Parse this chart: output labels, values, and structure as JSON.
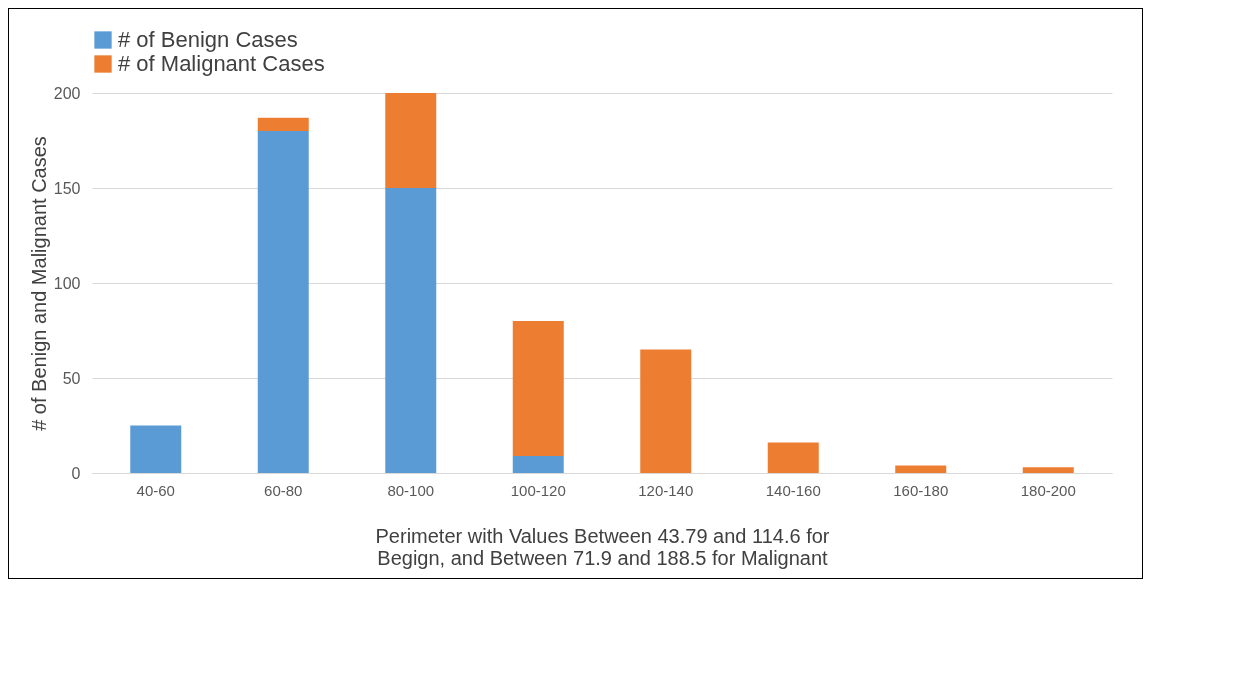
{
  "chart_data": {
    "type": "bar",
    "stacked": true,
    "xlabel": "Perimeter with Values Between 43.79 and 114.6 for\nBegign, and Between 71.9 and 188.5 for Malignant",
    "ylabel": "# of Benign and Malignant Cases",
    "categories": [
      "40-60",
      "60-80",
      "80-100",
      "100-120",
      "120-140",
      "140-160",
      "160-180",
      "180-200"
    ],
    "series": [
      {
        "name": "# of Benign Cases",
        "color": "#5b9bd5",
        "values": [
          25,
          180,
          150,
          9,
          0,
          0,
          0,
          0
        ]
      },
      {
        "name": "# of Malignant Cases",
        "color": "#ed7d31",
        "values": [
          0,
          7,
          50,
          71,
          65,
          16,
          4,
          3
        ]
      }
    ],
    "ylim": [
      0,
      200
    ],
    "yticks": [
      0,
      50,
      100,
      150,
      200
    ],
    "grid": "y",
    "legend": "top"
  }
}
